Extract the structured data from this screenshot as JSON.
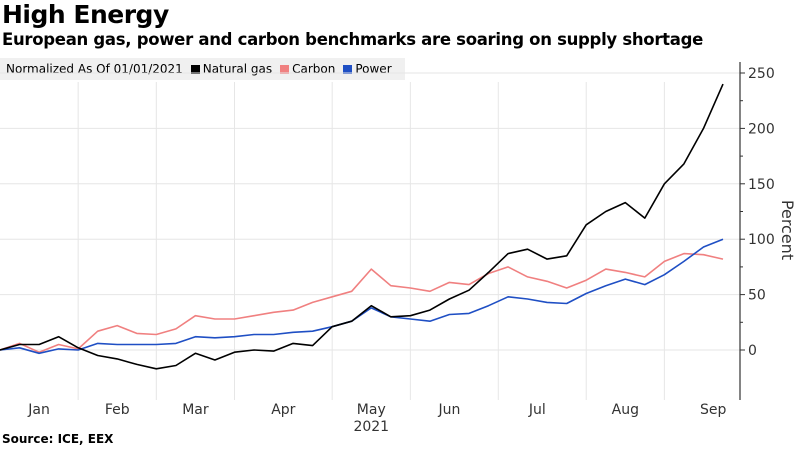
{
  "title": "High Energy",
  "subtitle": "European gas, power and carbon benchmarks are soaring on supply shortage",
  "source": "Source: ICE, EEX",
  "chart_data": {
    "type": "line",
    "title": "High Energy",
    "legend_title": "Normalized As Of 01/01/2021",
    "legend_placement": "top-left",
    "xlabel": "2021",
    "ylabel": "Percent",
    "ylim": [
      -45,
      262
    ],
    "yticks": [
      0,
      50,
      100,
      150,
      200,
      250
    ],
    "xticks": [
      {
        "label": "Jan",
        "week": 2
      },
      {
        "label": "Feb",
        "week": 6
      },
      {
        "label": "Mar",
        "week": 10
      },
      {
        "label": "Apr",
        "week": 14.5
      },
      {
        "label": "May",
        "week": 19
      },
      {
        "label": "Jun",
        "week": 23
      },
      {
        "label": "Jul",
        "week": 27.5
      },
      {
        "label": "Aug",
        "week": 32
      },
      {
        "label": "Sep",
        "week": 36.5
      }
    ],
    "x_unit": "weeks since 01/01/2021",
    "x": [
      0,
      1,
      2,
      3,
      4,
      5,
      6,
      7,
      8,
      9,
      10,
      11,
      12,
      13,
      14,
      15,
      16,
      17,
      18,
      19,
      20,
      21,
      22,
      23,
      24,
      25,
      26,
      27,
      28,
      29,
      30,
      31,
      32,
      33,
      34,
      35,
      36,
      37
    ],
    "series": [
      {
        "name": "Natural gas",
        "color": "#000000",
        "values": [
          0,
          5,
          5,
          12,
          2,
          -5,
          -8,
          -13,
          -17,
          -14,
          -3,
          -9,
          -2,
          0,
          -1,
          6,
          4,
          21,
          26,
          40,
          30,
          31,
          36,
          46,
          54,
          70,
          87,
          91,
          82,
          85,
          113,
          125,
          133,
          119,
          150,
          168,
          200,
          240
        ]
      },
      {
        "name": "Carbon",
        "color": "#f08080",
        "values": [
          0,
          6,
          -2,
          5,
          1,
          17,
          22,
          15,
          14,
          19,
          31,
          28,
          28,
          31,
          34,
          36,
          43,
          48,
          53,
          73,
          58,
          56,
          53,
          61,
          59,
          69,
          75,
          66,
          62,
          56,
          63,
          73,
          70,
          66,
          80,
          87,
          86,
          82
        ]
      },
      {
        "name": "Power",
        "color": "#1f4fc4",
        "values": [
          0,
          2,
          -3,
          1,
          0,
          6,
          5,
          5,
          5,
          6,
          12,
          11,
          12,
          14,
          14,
          16,
          17,
          21,
          26,
          38,
          30,
          28,
          26,
          32,
          33,
          40,
          48,
          46,
          43,
          42,
          51,
          58,
          64,
          59,
          68,
          80,
          93,
          100
        ]
      }
    ]
  }
}
